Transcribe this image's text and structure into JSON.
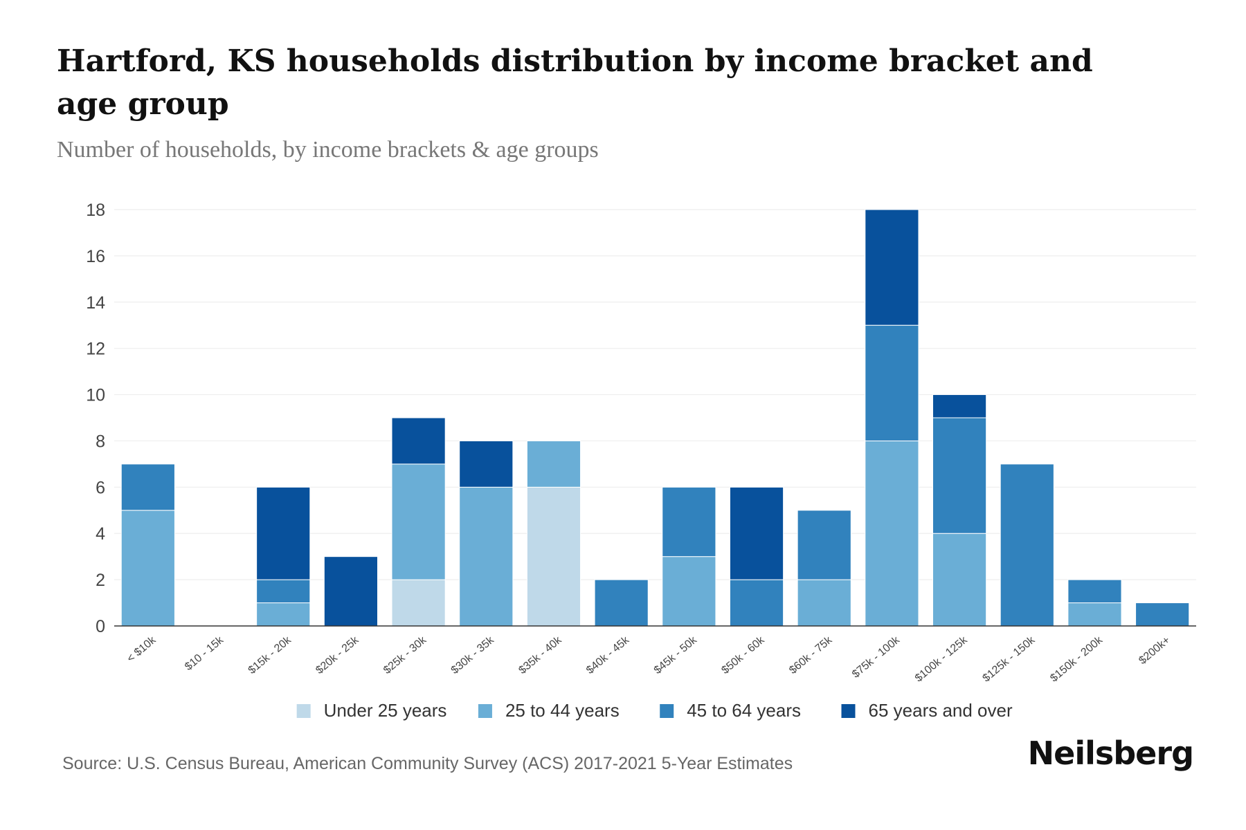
{
  "chart_data": {
    "type": "bar",
    "stacked": true,
    "title": "Hartford, KS households distribution by income bracket and age group",
    "subtitle": "Number of households, by income brackets & age groups",
    "xlabel": "",
    "ylabel": "",
    "ylim": [
      0,
      18
    ],
    "yticks": [
      0,
      2,
      4,
      6,
      8,
      10,
      12,
      14,
      16,
      18
    ],
    "grid": true,
    "legend_position": "bottom-center",
    "categories": [
      "< $10k",
      "$10 - 15k",
      "$15k - 20k",
      "$20k - 25k",
      "$25k - 30k",
      "$30k - 35k",
      "$35k - 40k",
      "$40k - 45k",
      "$45k - 50k",
      "$50k - 60k",
      "$60k - 75k",
      "$75k - 100k",
      "$100k - 125k",
      "$125k - 150k",
      "$150k - 200k",
      "$200k+"
    ],
    "series": [
      {
        "name": "Under 25 years",
        "color": "#bfd9e9",
        "values": [
          0,
          0,
          0,
          0,
          2,
          0,
          6,
          0,
          0,
          0,
          0,
          0,
          0,
          0,
          0,
          0
        ]
      },
      {
        "name": "25 to 44 years",
        "color": "#6aaed6",
        "values": [
          5,
          0,
          1,
          0,
          5,
          6,
          2,
          0,
          3,
          0,
          2,
          8,
          4,
          0,
          1,
          0
        ]
      },
      {
        "name": "45 to 64 years",
        "color": "#3182bd",
        "values": [
          2,
          0,
          1,
          0,
          0,
          0,
          0,
          2,
          3,
          2,
          3,
          5,
          5,
          7,
          1,
          1
        ]
      },
      {
        "name": "65 years and over",
        "color": "#08519c",
        "values": [
          0,
          0,
          4,
          3,
          2,
          2,
          0,
          0,
          0,
          4,
          0,
          5,
          1,
          0,
          0,
          0
        ]
      }
    ]
  },
  "footer": {
    "source": "Source: U.S. Census Bureau, American Community Survey (ACS) 2017-2021 5-Year Estimates",
    "brand": "Neilsberg"
  }
}
